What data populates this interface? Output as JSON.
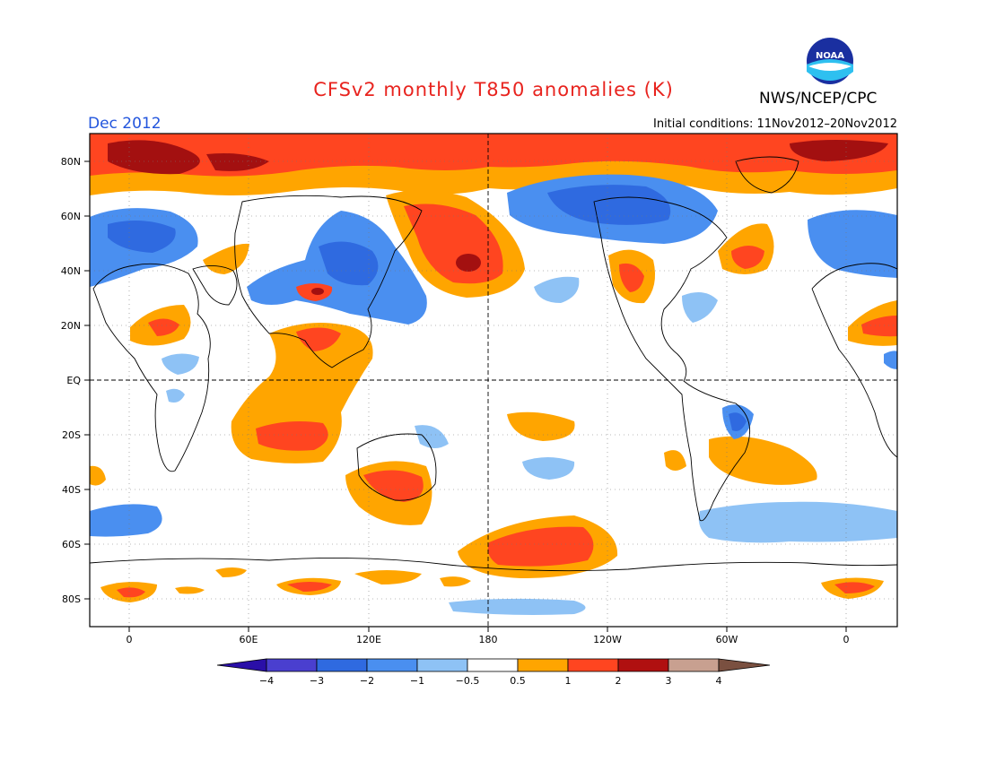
{
  "header": {
    "title": "CFSv2 monthly T850 anomalies (K)",
    "period": "Dec 2012",
    "agency": "NWS/NCEP/CPC",
    "initial_conditions": "Initial conditions: 11Nov2012–20Nov2012",
    "logo_text": "NOAA"
  },
  "axes": {
    "lat_labels": [
      "80N",
      "60N",
      "40N",
      "20N",
      "EQ",
      "20S",
      "40S",
      "60S",
      "80S"
    ],
    "lon_labels": [
      "0",
      "60E",
      "120E",
      "180",
      "120W",
      "60W",
      "0"
    ]
  },
  "colorbar": {
    "levels": [
      "−4",
      "−3",
      "−2",
      "−1",
      "−0.5",
      "0.5",
      "1",
      "2",
      "3",
      "4"
    ],
    "colors": [
      "#2a0fa8",
      "#4a3fcf",
      "#2f6ae0",
      "#4a8ff0",
      "#8ec2f5",
      "#ffffff",
      "#ffa500",
      "#ff4520",
      "#b01010",
      "#c8a090",
      "#7a5040"
    ]
  },
  "anomaly_colors": {
    "cold_1": "#2f6ae0",
    "cold_2": "#4a8ff0",
    "cold_3": "#8ec2f5",
    "warm_1": "#ffa500",
    "warm_2": "#ff4520",
    "warm_3": "#a31010"
  }
}
